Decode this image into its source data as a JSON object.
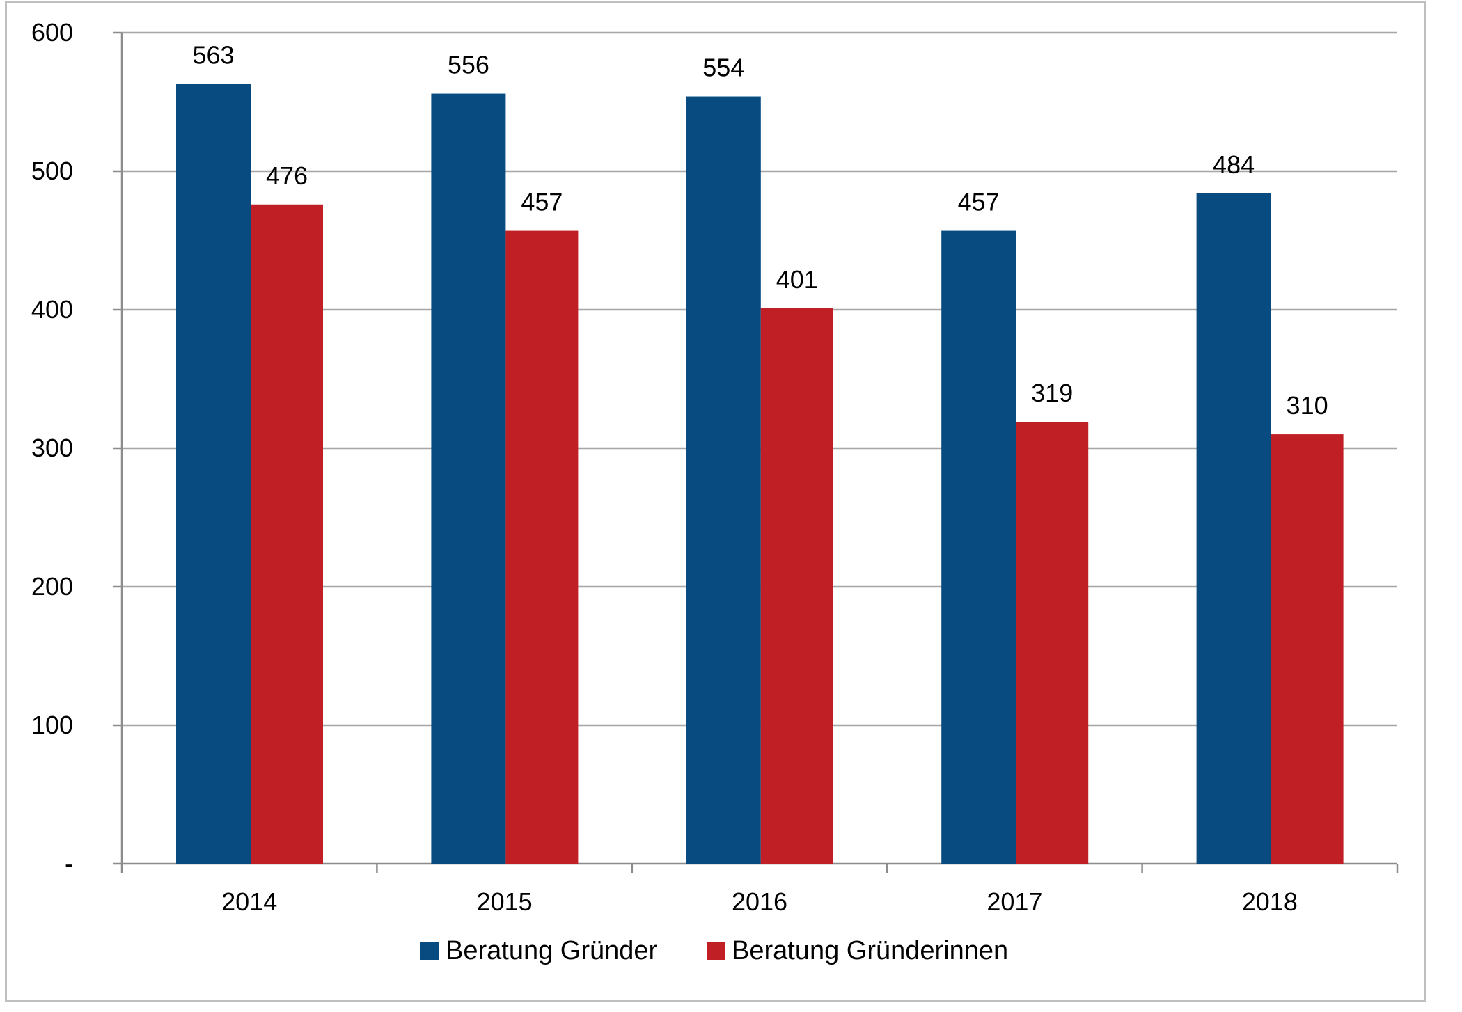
{
  "chart_data": {
    "type": "bar",
    "categories": [
      "2014",
      "2015",
      "2016",
      "2017",
      "2018"
    ],
    "series": [
      {
        "name": "Beratung Gründer",
        "values": [
          563,
          556,
          554,
          457,
          484
        ],
        "color": "#074b80"
      },
      {
        "name": "Beratung Gründerinnen",
        "values": [
          476,
          457,
          401,
          319,
          310
        ],
        "color": "#c01f25"
      }
    ],
    "ylim": [
      0,
      600
    ],
    "yticks": [
      0,
      100,
      200,
      300,
      400,
      500,
      600
    ],
    "ytick_labels": [
      "-",
      "100",
      "200",
      "300",
      "400",
      "500",
      "600"
    ],
    "grid": true,
    "legend_position": "bottom",
    "data_labels": true,
    "gridline_color": "#a6a6a6",
    "axis_color": "#8c8c8c"
  }
}
